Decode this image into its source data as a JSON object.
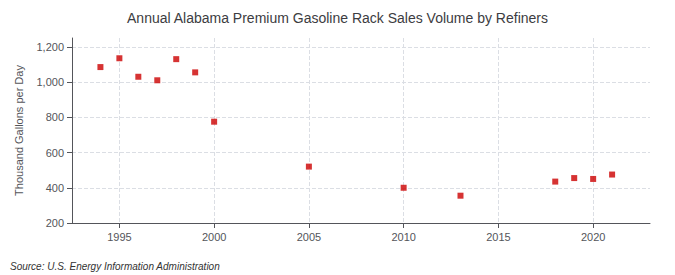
{
  "chart_data": {
    "type": "scatter",
    "title": "Annual Alabama Premium Gasoline Rack Sales Volume by Refiners",
    "ylabel": "Thousand Gallons per Day",
    "annotation": "Source: U.S. Energy Information Administration",
    "x": [
      1994,
      1995,
      1996,
      1997,
      1998,
      1999,
      2000,
      2005,
      2010,
      2013,
      2018,
      2019,
      2020,
      2021
    ],
    "values": [
      1085,
      1135,
      1030,
      1010,
      1130,
      1055,
      775,
      520,
      400,
      355,
      435,
      455,
      450,
      475
    ],
    "color": "#cc0000",
    "marker": "square",
    "xlim": [
      1992.5,
      2023
    ],
    "ylim": [
      200,
      1250
    ],
    "xticks": [
      1995,
      2000,
      2005,
      2010,
      2015,
      2020
    ],
    "yticks": [
      200,
      400,
      600,
      800,
      {
        "value": 1000,
        "label": "1,000"
      },
      {
        "value": 1200,
        "label": "1,200"
      }
    ],
    "grid": true
  }
}
